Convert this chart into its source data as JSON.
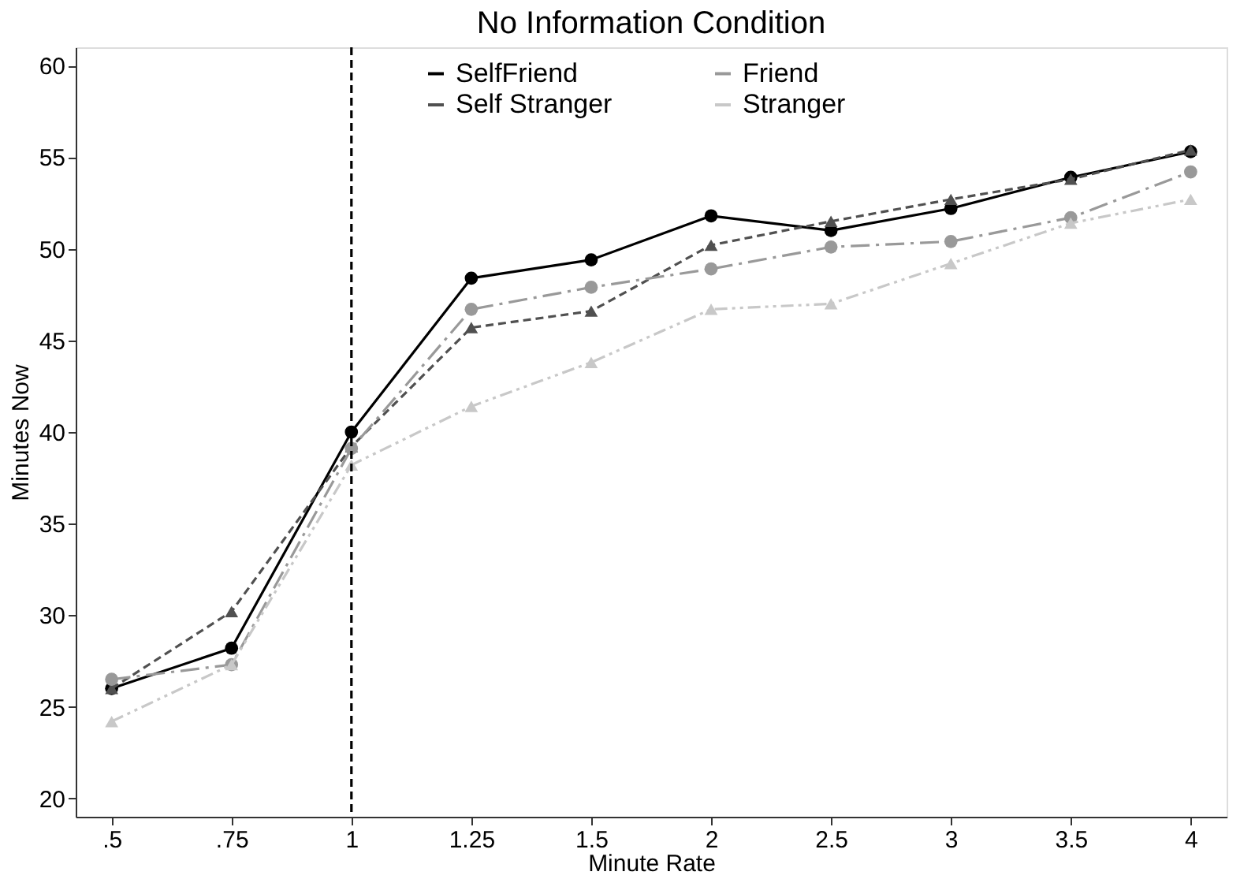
{
  "chart_data": {
    "type": "line",
    "title": "No Information Condition",
    "xlabel": "Minute Rate",
    "ylabel": "Minutes Now",
    "categories": [
      ".5",
      ".75",
      "1",
      "1.25",
      "1.5",
      "2",
      "2.5",
      "3",
      "3.5",
      "4"
    ],
    "series": [
      {
        "name": "SelfFriend",
        "color": "#000000",
        "marker": "circle",
        "line_style": "solid",
        "values": [
          26.0,
          28.2,
          40.0,
          48.4,
          49.4,
          51.8,
          51.0,
          52.2,
          53.9,
          55.3
        ]
      },
      {
        "name": "Self Stranger",
        "color": "#505050",
        "marker": "triangle",
        "line_style": "dashed",
        "values": [
          26.0,
          30.2,
          39.2,
          45.7,
          46.6,
          50.2,
          51.5,
          52.7,
          53.8,
          55.4
        ]
      },
      {
        "name": "Friend",
        "color": "#999999",
        "marker": "circle",
        "line_style": "dashdot",
        "values": [
          26.5,
          27.3,
          39.1,
          46.7,
          47.9,
          48.9,
          50.1,
          50.4,
          51.7,
          54.2
        ]
      },
      {
        "name": "Stranger",
        "color": "#c8c8c8",
        "marker": "triangle",
        "line_style": "dashdotdot",
        "values": [
          24.2,
          27.3,
          38.2,
          41.4,
          43.8,
          46.7,
          47.0,
          49.2,
          51.4,
          52.7
        ]
      }
    ],
    "ylim": [
      19,
      61
    ],
    "yticks": [
      20,
      25,
      30,
      35,
      40,
      45,
      50,
      55,
      60
    ],
    "ref_lines": [
      {
        "axis": "x",
        "value": "1",
        "color": "#000000",
        "line_style": "dashed"
      }
    ],
    "grid": false,
    "legend": "top"
  }
}
